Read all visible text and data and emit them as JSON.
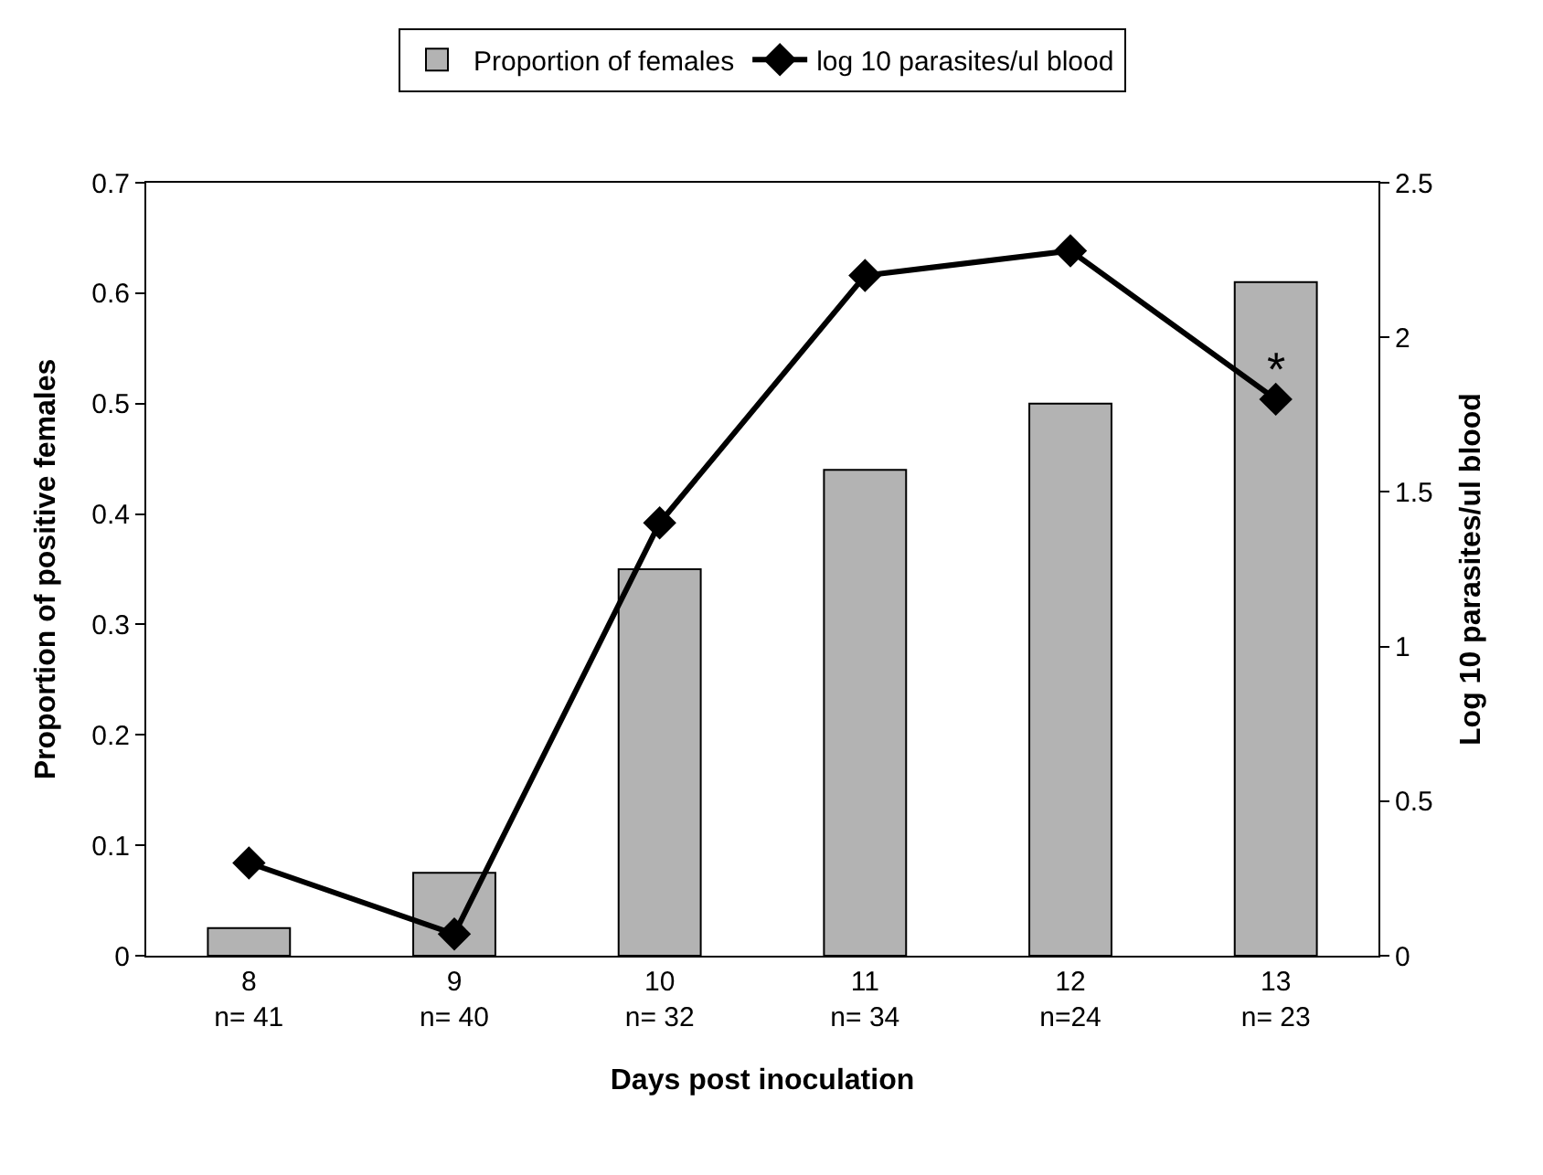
{
  "chart_data": {
    "type": "bar",
    "xlabel": "Days post inoculation",
    "ylabel": "Proportion of positive females",
    "y2label": "Log 10 parasites/ul blood",
    "categories": [
      "8\nn= 41",
      "9\nn= 40",
      "10\nn= 32",
      "11\nn= 34",
      "12\nn=24",
      "13\nn= 23"
    ],
    "series": [
      {
        "name": "Proportion of females",
        "color": "#b3b3b3",
        "values": [
          0.025,
          0.075,
          0.35,
          0.44,
          0.5,
          0.61
        ]
      },
      {
        "name": "log 10 parasites/ul blood",
        "type": "line",
        "axis": "y2",
        "color": "#000000",
        "marker": "diamond",
        "values": [
          0.3,
          0.07,
          1.4,
          2.2,
          2.28,
          1.8
        ]
      }
    ],
    "ylim": [
      0,
      0.7
    ],
    "yticks": [
      0,
      0.1,
      0.2,
      0.3,
      0.4,
      0.5,
      0.6,
      0.7
    ],
    "y2lim": [
      0,
      2.5
    ],
    "y2ticks": [
      0,
      0.5,
      1,
      1.5,
      2,
      2.5
    ],
    "annotations": [
      "*"
    ],
    "legend": "top"
  }
}
